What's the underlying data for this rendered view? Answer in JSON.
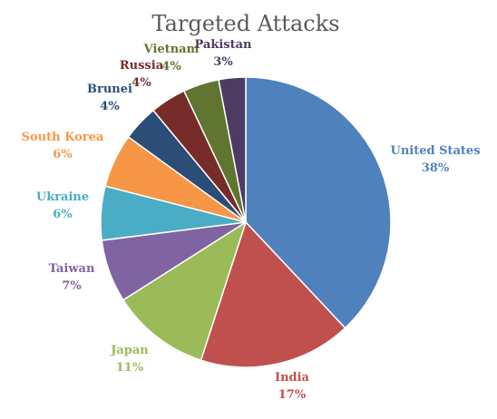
{
  "chart_data": {
    "type": "pie",
    "title": "Targeted Attacks",
    "slices": [
      {
        "label": "United States",
        "value": 38,
        "pct_label": "38%",
        "color": "#4F81BD"
      },
      {
        "label": "India",
        "value": 17,
        "pct_label": "17%",
        "color": "#C0504D"
      },
      {
        "label": "Japan",
        "value": 11,
        "pct_label": "11%",
        "color": "#9BBB59"
      },
      {
        "label": "Taiwan",
        "value": 7,
        "pct_label": "7%",
        "color": "#8064A2"
      },
      {
        "label": "Ukraine",
        "value": 6,
        "pct_label": "6%",
        "color": "#4BACC6"
      },
      {
        "label": "South Korea",
        "value": 6,
        "pct_label": "6%",
        "color": "#F79646"
      },
      {
        "label": "Brunei",
        "value": 4,
        "pct_label": "4%",
        "color": "#2C4D75"
      },
      {
        "label": "Russia",
        "value": 4,
        "pct_label": "4%",
        "color": "#772C2A"
      },
      {
        "label": "Vietnam",
        "value": 4,
        "pct_label": "4%",
        "color": "#5F7530"
      },
      {
        "label": "Pakistan",
        "value": 3,
        "pct_label": "3%",
        "color": "#4D3B62"
      }
    ],
    "start_angle": "12 o'clock",
    "direction": "clockwise",
    "legend": "none",
    "data_labels": "outside"
  }
}
